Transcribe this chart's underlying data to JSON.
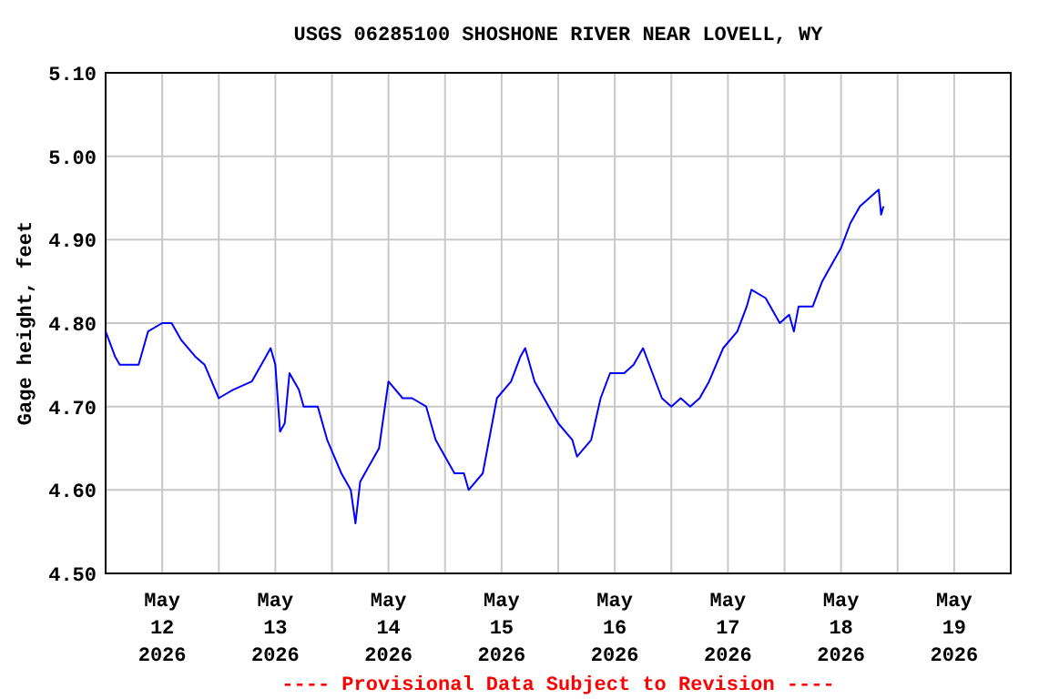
{
  "chart_data": {
    "type": "line",
    "title": "USGS 06285100 SHOSHONE RIVER NEAR LOVELL, WY",
    "ylabel": "Gage height, feet",
    "annotations": [
      "---- Provisional Data Subject to Revision ----"
    ],
    "x": [
      "2026-05-12T00:00",
      "2026-05-12T02:00",
      "2026-05-12T03:00",
      "2026-05-12T07:00",
      "2026-05-12T09:00",
      "2026-05-12T12:00",
      "2026-05-12T14:00",
      "2026-05-12T16:00",
      "2026-05-12T19:00",
      "2026-05-12T21:00",
      "2026-05-13T00:00",
      "2026-05-13T03:00",
      "2026-05-13T07:00",
      "2026-05-13T10:00",
      "2026-05-13T11:00",
      "2026-05-13T12:00",
      "2026-05-13T13:00",
      "2026-05-13T14:00",
      "2026-05-13T15:00",
      "2026-05-13T17:00",
      "2026-05-13T18:00",
      "2026-05-13T21:00",
      "2026-05-13T23:00",
      "2026-05-14T02:00",
      "2026-05-14T04:00",
      "2026-05-14T05:00",
      "2026-05-14T06:00",
      "2026-05-14T08:00",
      "2026-05-14T10:00",
      "2026-05-14T12:00",
      "2026-05-14T15:00",
      "2026-05-14T17:00",
      "2026-05-14T20:00",
      "2026-05-14T22:00",
      "2026-05-15T02:00",
      "2026-05-15T04:00",
      "2026-05-15T05:00",
      "2026-05-15T08:00",
      "2026-05-15T10:00",
      "2026-05-15T11:00",
      "2026-05-15T14:00",
      "2026-05-15T16:00",
      "2026-05-15T17:00",
      "2026-05-15T19:00",
      "2026-05-15T22:00",
      "2026-05-16T00:00",
      "2026-05-16T03:00",
      "2026-05-16T04:00",
      "2026-05-16T07:00",
      "2026-05-16T09:00",
      "2026-05-16T11:00",
      "2026-05-16T14:00",
      "2026-05-16T16:00",
      "2026-05-16T18:00",
      "2026-05-16T20:00",
      "2026-05-16T22:00",
      "2026-05-17T00:00",
      "2026-05-17T02:00",
      "2026-05-17T04:00",
      "2026-05-17T06:00",
      "2026-05-17T08:00",
      "2026-05-17T11:00",
      "2026-05-17T14:00",
      "2026-05-17T16:00",
      "2026-05-17T17:00",
      "2026-05-17T20:00",
      "2026-05-17T23:00",
      "2026-05-18T01:00",
      "2026-05-18T02:00",
      "2026-05-18T03:00",
      "2026-05-18T06:00",
      "2026-05-18T08:00",
      "2026-05-18T10:00",
      "2026-05-18T12:00",
      "2026-05-18T14:00",
      "2026-05-18T16:00",
      "2026-05-18T18:00",
      "2026-05-18T20:00",
      "2026-05-18T20:30",
      "2026-05-18T21:00"
    ],
    "series": [
      {
        "color": "#0000ff",
        "values": [
          4.79,
          4.76,
          4.75,
          4.75,
          4.79,
          4.8,
          4.8,
          4.78,
          4.76,
          4.75,
          4.71,
          4.72,
          4.73,
          4.76,
          4.77,
          4.75,
          4.67,
          4.68,
          4.74,
          4.72,
          4.7,
          4.7,
          4.66,
          4.62,
          4.6,
          4.56,
          4.61,
          4.63,
          4.65,
          4.73,
          4.71,
          4.71,
          4.7,
          4.66,
          4.62,
          4.62,
          4.6,
          4.62,
          4.68,
          4.71,
          4.73,
          4.76,
          4.77,
          4.73,
          4.7,
          4.68,
          4.66,
          4.64,
          4.66,
          4.71,
          4.74,
          4.74,
          4.75,
          4.77,
          4.74,
          4.71,
          4.7,
          4.71,
          4.7,
          4.71,
          4.73,
          4.77,
          4.79,
          4.82,
          4.84,
          4.83,
          4.8,
          4.81,
          4.79,
          4.82,
          4.82,
          4.85,
          4.87,
          4.89,
          4.92,
          4.94,
          4.95,
          4.96,
          4.93,
          4.94
        ]
      }
    ],
    "xlim": [
      "2026-05-12T00:00",
      "2026-05-20T00:00"
    ],
    "xticks": [
      {
        "value": "2026-05-12T12:00",
        "label": "May\n12\n2026"
      },
      {
        "value": "2026-05-13T00:00",
        "label": null
      },
      {
        "value": "2026-05-13T12:00",
        "label": "May\n13\n2026"
      },
      {
        "value": "2026-05-14T00:00",
        "label": null
      },
      {
        "value": "2026-05-14T12:00",
        "label": "May\n14\n2026"
      },
      {
        "value": "2026-05-15T00:00",
        "label": null
      },
      {
        "value": "2026-05-15T12:00",
        "label": "May\n15\n2026"
      },
      {
        "value": "2026-05-16T00:00",
        "label": null
      },
      {
        "value": "2026-05-16T12:00",
        "label": "May\n16\n2026"
      },
      {
        "value": "2026-05-17T00:00",
        "label": null
      },
      {
        "value": "2026-05-17T12:00",
        "label": "May\n17\n2026"
      },
      {
        "value": "2026-05-18T00:00",
        "label": null
      },
      {
        "value": "2026-05-18T12:00",
        "label": "May\n18\n2026"
      },
      {
        "value": "2026-05-19T00:00",
        "label": null
      },
      {
        "value": "2026-05-19T12:00",
        "label": "May\n19\n2026"
      }
    ],
    "ylim": [
      4.5,
      5.1
    ],
    "yticks": [
      {
        "value": 4.5,
        "label": "4.50"
      },
      {
        "value": 4.6,
        "label": "4.60"
      },
      {
        "value": 4.7,
        "label": "4.70"
      },
      {
        "value": 4.8,
        "label": "4.80"
      },
      {
        "value": 4.9,
        "label": "4.90"
      },
      {
        "value": 5.0,
        "label": "5.00"
      },
      {
        "value": 5.1,
        "label": "5.10"
      }
    ],
    "grid": true
  }
}
